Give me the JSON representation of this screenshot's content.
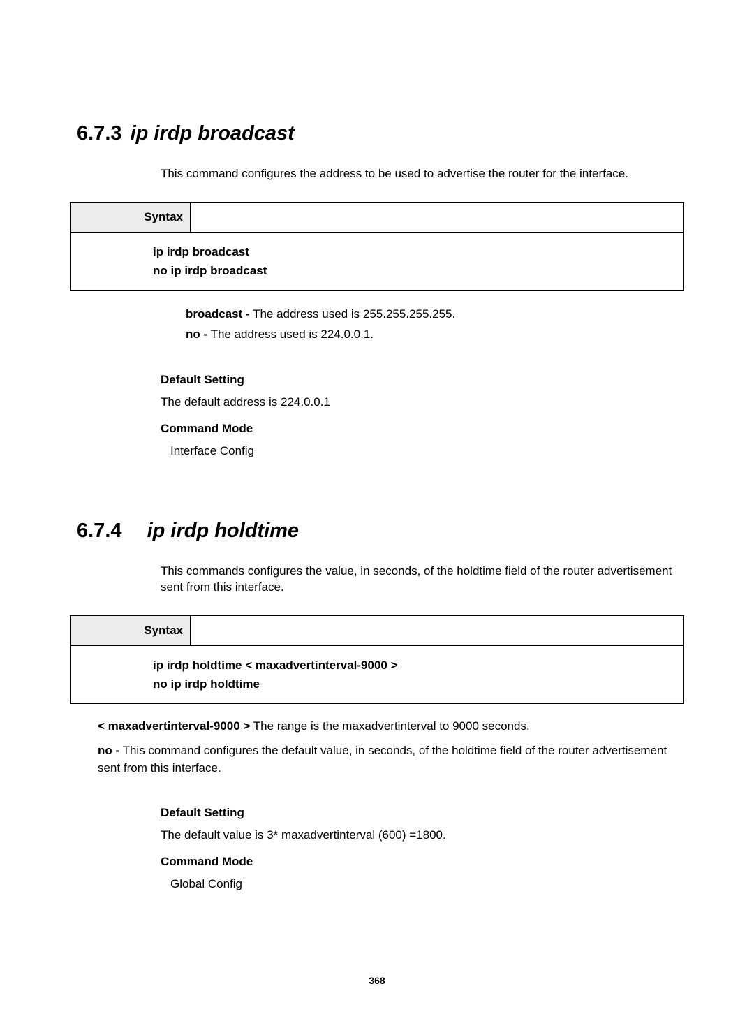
{
  "section1": {
    "number": "6.7.3",
    "title": "ip irdp broadcast",
    "description": "This command configures the address to be used to advertise the router for the interface.",
    "syntax_label": "Syntax",
    "syntax_line1": "ip irdp broadcast",
    "syntax_line2": "no ip irdp broadcast",
    "param1_key": "broadcast -",
    "param1_val": " The address used is 255.255.255.255.",
    "param2_key": "no -",
    "param2_val": " The address used is 224.0.0.1.",
    "default_heading": "Default Setting",
    "default_text": "The default address is 224.0.0.1",
    "mode_heading": "Command Mode",
    "mode_text": "Interface Config"
  },
  "section2": {
    "number": "6.7.4",
    "title": "ip irdp holdtime",
    "description": "This commands configures the value, in seconds, of the holdtime field of the router advertisement sent from this interface.",
    "syntax_label": "Syntax",
    "syntax_line1": "ip irdp holdtime < maxadvertinterval-9000 >",
    "syntax_line2": "no ip irdp holdtime",
    "note1_key": "< maxadvertinterval-9000 >",
    "note1_val": " The range is the maxadvertinterval to 9000 seconds.",
    "note2_key": "no -",
    "note2_val": " This command configures the default value, in seconds, of the holdtime field of the router advertisement sent from this interface.",
    "default_heading": "Default Setting",
    "default_text": "The default value is 3* maxadvertinterval (600) =1800.",
    "mode_heading": "Command Mode",
    "mode_text": "Global Config"
  },
  "page_number": "368"
}
